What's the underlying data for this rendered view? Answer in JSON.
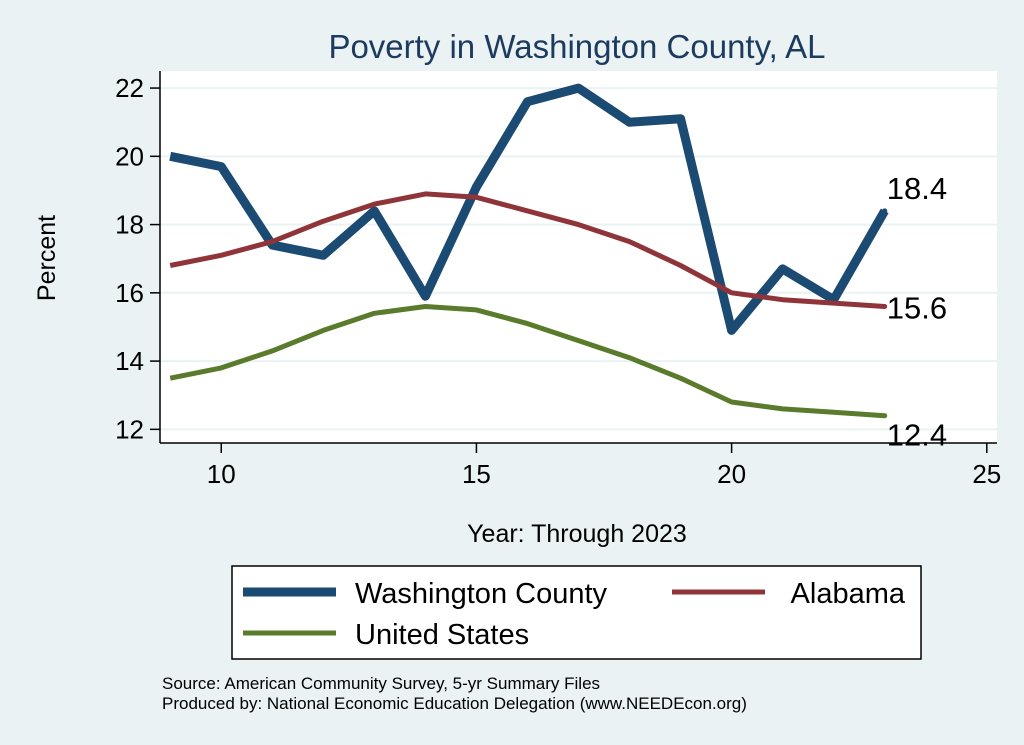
{
  "chart_data": {
    "type": "line",
    "title": "Poverty in Washington County, AL",
    "xlabel": "Year: Through 2023",
    "ylabel": "Percent",
    "xlim": [
      8.8,
      25.2
    ],
    "ylim": [
      11.6,
      22.5
    ],
    "xticks": [
      10,
      15,
      20,
      25
    ],
    "yticks": [
      12,
      14,
      16,
      18,
      20,
      22
    ],
    "grid": true,
    "legend_position": "bottom",
    "x": [
      9,
      10,
      11,
      12,
      13,
      14,
      15,
      16,
      17,
      18,
      19,
      20,
      21,
      22,
      23
    ],
    "series": [
      {
        "name": "Washington County",
        "color": "#1b4a72",
        "values": [
          20.0,
          19.7,
          17.4,
          17.1,
          18.4,
          15.9,
          19.1,
          21.6,
          22.0,
          21.0,
          21.1,
          14.9,
          16.7,
          15.8,
          18.4
        ],
        "end_label": "18.4"
      },
      {
        "name": "Alabama",
        "color": "#8f3539",
        "values": [
          16.8,
          17.1,
          17.5,
          18.1,
          18.6,
          18.9,
          18.8,
          18.4,
          18.0,
          17.5,
          16.8,
          16.0,
          15.8,
          15.7,
          15.6
        ],
        "end_label": "15.6"
      },
      {
        "name": "United States",
        "color": "#5b7b2c",
        "values": [
          13.5,
          13.8,
          14.3,
          14.9,
          15.4,
          15.6,
          15.5,
          15.1,
          14.6,
          14.1,
          13.5,
          12.8,
          12.6,
          12.5,
          12.4
        ],
        "end_label": "12.4"
      }
    ],
    "notes": [
      "Source: American Community Survey, 5-yr Summary Files",
      "Produced by: National Economic Education Delegation (www.NEEDEcon.org)"
    ]
  }
}
